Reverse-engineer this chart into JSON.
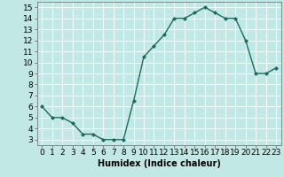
{
  "x": [
    0,
    1,
    2,
    3,
    4,
    5,
    6,
    7,
    8,
    9,
    10,
    11,
    12,
    13,
    14,
    15,
    16,
    17,
    18,
    19,
    20,
    21,
    22,
    23
  ],
  "y": [
    6,
    5,
    5,
    4.5,
    3.5,
    3.5,
    3,
    3,
    3,
    6.5,
    10.5,
    11.5,
    12.5,
    14,
    14,
    14.5,
    15,
    14.5,
    14,
    14,
    12,
    9,
    9,
    9.5
  ],
  "line_color": "#1a6b5e",
  "marker": "D",
  "marker_size": 2,
  "bg_color": "#c2e8e5",
  "grid_color": "#ffffff",
  "xlabel": "Humidex (Indice chaleur)",
  "xlabel_fontsize": 7,
  "xlim": [
    -0.5,
    23.5
  ],
  "ylim": [
    2.5,
    15.5
  ],
  "yticks": [
    3,
    4,
    5,
    6,
    7,
    8,
    9,
    10,
    11,
    12,
    13,
    14,
    15
  ],
  "xticks": [
    0,
    1,
    2,
    3,
    4,
    5,
    6,
    7,
    8,
    9,
    10,
    11,
    12,
    13,
    14,
    15,
    16,
    17,
    18,
    19,
    20,
    21,
    22,
    23
  ],
  "tick_fontsize": 6.5,
  "linewidth": 1.0
}
